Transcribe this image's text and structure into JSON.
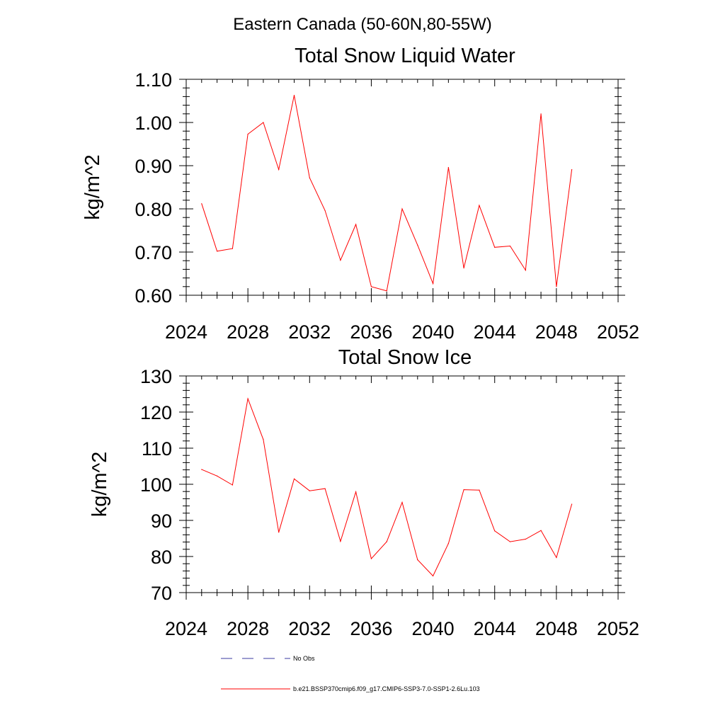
{
  "figure_title": "Eastern Canada (50-60N,80-55W)",
  "legend": {
    "items": [
      {
        "label": "No Obs",
        "color": "#3a3aa0",
        "style": "dashed"
      },
      {
        "label": "b.e21.BSSP370cmip6.f09_g17.CMIP6-SSP3-7.0-SSP1-2.6Lu.103",
        "color": "#ff0000",
        "style": "solid"
      }
    ]
  },
  "chart_data": [
    {
      "type": "line",
      "title": "Total Snow Liquid Water",
      "xlabel": "",
      "ylabel": "kg/m^2",
      "xlim": [
        2024,
        2052
      ],
      "ylim": [
        0.6,
        1.1
      ],
      "x_ticks": [
        "2024",
        "2028",
        "2032",
        "2036",
        "2040",
        "2044",
        "2048",
        "2052"
      ],
      "y_ticks": [
        "0.60",
        "0.70",
        "0.80",
        "0.90",
        "1.00",
        "1.10"
      ],
      "grid": false,
      "series": [
        {
          "name": "b.e21.BSSP370cmip6.f09_g17.CMIP6-SSP3-7.0-SSP1-2.6Lu.103",
          "color": "#ff0000",
          "x": [
            2025,
            2026,
            2027,
            2028,
            2029,
            2030,
            2031,
            2032,
            2033,
            2034,
            2035,
            2036,
            2037,
            2038,
            2039,
            2040,
            2041,
            2042,
            2043,
            2044,
            2045,
            2046,
            2047,
            2048,
            2049
          ],
          "values": [
            0.812,
            0.702,
            0.708,
            0.973,
            1.0,
            0.891,
            1.063,
            0.872,
            0.796,
            0.681,
            0.764,
            0.62,
            0.61,
            0.8,
            0.716,
            0.627,
            0.896,
            0.663,
            0.808,
            0.711,
            0.714,
            0.658,
            1.02,
            0.62,
            0.891
          ]
        }
      ]
    },
    {
      "type": "line",
      "title": "Total Snow Ice",
      "xlabel": "",
      "ylabel": "kg/m^2",
      "xlim": [
        2024,
        2052
      ],
      "ylim": [
        70,
        130
      ],
      "x_ticks": [
        "2024",
        "2028",
        "2032",
        "2036",
        "2040",
        "2044",
        "2048",
        "2052"
      ],
      "y_ticks": [
        "70",
        "80",
        "90",
        "100",
        "110",
        "120",
        "130"
      ],
      "grid": false,
      "series": [
        {
          "name": "b.e21.BSSP370cmip6.f09_g17.CMIP6-SSP3-7.0-SSP1-2.6Lu.103",
          "color": "#ff0000",
          "x": [
            2025,
            2026,
            2027,
            2028,
            2029,
            2030,
            2031,
            2032,
            2033,
            2034,
            2035,
            2036,
            2037,
            2038,
            2039,
            2040,
            2041,
            2042,
            2043,
            2044,
            2045,
            2046,
            2047,
            2048,
            2049
          ],
          "values": [
            104.1,
            102.3,
            99.8,
            123.7,
            112.4,
            86.7,
            101.5,
            98.2,
            98.8,
            84.2,
            97.9,
            79.4,
            84.1,
            95.0,
            79.1,
            74.6,
            83.6,
            98.5,
            98.4,
            87.1,
            84.1,
            84.8,
            87.2,
            79.7,
            94.5
          ]
        }
      ]
    }
  ]
}
